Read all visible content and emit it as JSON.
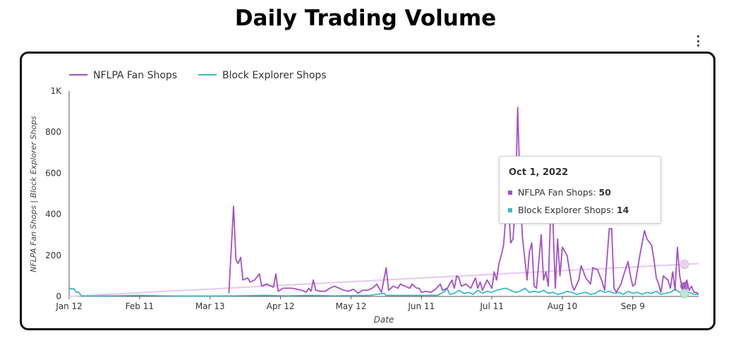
{
  "header": {
    "title": "Daily Trading Volume"
  },
  "menu": {
    "icon": "kebab-menu-icon"
  },
  "colors": {
    "nflpa": "#a34fc4",
    "block": "#3ab8cc",
    "trend": "#e6c8ee",
    "axis": "#555555"
  },
  "tooltip": {
    "date": "Oct 1, 2022",
    "rows": [
      {
        "label": "NFLPA Fan Shops: ",
        "value": "50"
      },
      {
        "label": "Block Explorer Shops: ",
        "value": "14"
      }
    ]
  },
  "chart_data": {
    "type": "line",
    "title": "Daily Trading Volume",
    "xlabel": "Date",
    "ylabel": "NFLPA Fan Shops | Block Explorer Shops",
    "ylim": [
      0,
      1000
    ],
    "yticks": [
      0,
      200,
      400,
      600,
      800,
      1000
    ],
    "ytick_labels": [
      "0",
      "200",
      "400",
      "600",
      "800",
      "1K"
    ],
    "xlim": [
      "2022-01-12",
      "2022-10-07"
    ],
    "xticks": [
      "2022-01-12",
      "2022-02-11",
      "2022-03-13",
      "2022-04-12",
      "2022-05-12",
      "2022-06-11",
      "2022-07-11",
      "2022-08-10",
      "2022-09-09"
    ],
    "xtick_labels": [
      "Jan 12",
      "Feb 11",
      "Mar 13",
      "Apr 12",
      "May 12",
      "Jun 11",
      "Jul 11",
      "Aug 10",
      "Sep 9"
    ],
    "legend": "top-left",
    "series": [
      {
        "name": "NFLPA Fan Shops",
        "points": [
          [
            "2022-03-21",
            15
          ],
          [
            "2022-03-23",
            440
          ],
          [
            "2022-03-24",
            180
          ],
          [
            "2022-03-25",
            160
          ],
          [
            "2022-03-26",
            190
          ],
          [
            "2022-03-27",
            80
          ],
          [
            "2022-03-29",
            90
          ],
          [
            "2022-03-30",
            70
          ],
          [
            "2022-04-01",
            80
          ],
          [
            "2022-04-03",
            110
          ],
          [
            "2022-04-04",
            50
          ],
          [
            "2022-04-06",
            60
          ],
          [
            "2022-04-08",
            50
          ],
          [
            "2022-04-09",
            45
          ],
          [
            "2022-04-10",
            110
          ],
          [
            "2022-04-11",
            25
          ],
          [
            "2022-04-13",
            40
          ],
          [
            "2022-04-17",
            40
          ],
          [
            "2022-04-21",
            30
          ],
          [
            "2022-04-23",
            20
          ],
          [
            "2022-04-24",
            40
          ],
          [
            "2022-04-25",
            25
          ],
          [
            "2022-04-26",
            80
          ],
          [
            "2022-04-27",
            30
          ],
          [
            "2022-04-29",
            25
          ],
          [
            "2022-05-01",
            25
          ],
          [
            "2022-05-03",
            40
          ],
          [
            "2022-05-05",
            50
          ],
          [
            "2022-05-07",
            40
          ],
          [
            "2022-05-09",
            30
          ],
          [
            "2022-05-11",
            25
          ],
          [
            "2022-05-13",
            35
          ],
          [
            "2022-05-15",
            15
          ],
          [
            "2022-05-17",
            30
          ],
          [
            "2022-05-19",
            30
          ],
          [
            "2022-05-21",
            40
          ],
          [
            "2022-05-23",
            60
          ],
          [
            "2022-05-25",
            20
          ],
          [
            "2022-05-26",
            80
          ],
          [
            "2022-05-27",
            140
          ],
          [
            "2022-05-28",
            30
          ],
          [
            "2022-05-30",
            50
          ],
          [
            "2022-06-01",
            40
          ],
          [
            "2022-06-02",
            60
          ],
          [
            "2022-06-04",
            50
          ],
          [
            "2022-06-06",
            40
          ],
          [
            "2022-06-07",
            60
          ],
          [
            "2022-06-09",
            40
          ],
          [
            "2022-06-10",
            40
          ],
          [
            "2022-06-11",
            20
          ],
          [
            "2022-06-13",
            25
          ],
          [
            "2022-06-15",
            20
          ],
          [
            "2022-06-17",
            35
          ],
          [
            "2022-06-19",
            60
          ],
          [
            "2022-06-20",
            30
          ],
          [
            "2022-06-22",
            40
          ],
          [
            "2022-06-24",
            80
          ],
          [
            "2022-06-25",
            40
          ],
          [
            "2022-06-26",
            100
          ],
          [
            "2022-06-27",
            90
          ],
          [
            "2022-06-28",
            50
          ],
          [
            "2022-06-30",
            60
          ],
          [
            "2022-07-02",
            40
          ],
          [
            "2022-07-04",
            90
          ],
          [
            "2022-07-05",
            40
          ],
          [
            "2022-07-06",
            70
          ],
          [
            "2022-07-07",
            30
          ],
          [
            "2022-07-09",
            80
          ],
          [
            "2022-07-10",
            60
          ],
          [
            "2022-07-11",
            40
          ],
          [
            "2022-07-12",
            120
          ],
          [
            "2022-07-13",
            80
          ],
          [
            "2022-07-14",
            160
          ],
          [
            "2022-07-15",
            200
          ],
          [
            "2022-07-16",
            250
          ],
          [
            "2022-07-17",
            400
          ],
          [
            "2022-07-18",
            470
          ],
          [
            "2022-07-19",
            260
          ],
          [
            "2022-07-20",
            280
          ],
          [
            "2022-07-21",
            450
          ],
          [
            "2022-07-22",
            920
          ],
          [
            "2022-07-23",
            530
          ],
          [
            "2022-07-24",
            290
          ],
          [
            "2022-07-26",
            80
          ],
          [
            "2022-07-27",
            220
          ],
          [
            "2022-07-28",
            260
          ],
          [
            "2022-07-29",
            50
          ],
          [
            "2022-07-30",
            40
          ],
          [
            "2022-08-01",
            300
          ],
          [
            "2022-08-02",
            80
          ],
          [
            "2022-08-03",
            120
          ],
          [
            "2022-08-04",
            50
          ],
          [
            "2022-08-05",
            400
          ],
          [
            "2022-08-06",
            370
          ],
          [
            "2022-08-07",
            40
          ],
          [
            "2022-08-08",
            280
          ],
          [
            "2022-08-09",
            100
          ],
          [
            "2022-08-10",
            240
          ],
          [
            "2022-08-12",
            200
          ],
          [
            "2022-08-14",
            60
          ],
          [
            "2022-08-15",
            30
          ],
          [
            "2022-08-17",
            80
          ],
          [
            "2022-08-18",
            150
          ],
          [
            "2022-08-20",
            90
          ],
          [
            "2022-08-22",
            60
          ],
          [
            "2022-08-23",
            140
          ],
          [
            "2022-08-25",
            130
          ],
          [
            "2022-08-27",
            70
          ],
          [
            "2022-08-28",
            30
          ],
          [
            "2022-08-30",
            330
          ],
          [
            "2022-08-31",
            330
          ],
          [
            "2022-09-01",
            40
          ],
          [
            "2022-09-02",
            20
          ],
          [
            "2022-09-04",
            60
          ],
          [
            "2022-09-05",
            100
          ],
          [
            "2022-09-07",
            170
          ],
          [
            "2022-09-08",
            100
          ],
          [
            "2022-09-09",
            50
          ],
          [
            "2022-09-10",
            60
          ],
          [
            "2022-09-12",
            200
          ],
          [
            "2022-09-14",
            320
          ],
          [
            "2022-09-15",
            280
          ],
          [
            "2022-09-17",
            250
          ],
          [
            "2022-09-18",
            180
          ],
          [
            "2022-09-19",
            90
          ],
          [
            "2022-09-20",
            60
          ],
          [
            "2022-09-21",
            20
          ],
          [
            "2022-09-22",
            100
          ],
          [
            "2022-09-24",
            80
          ],
          [
            "2022-09-25",
            40
          ],
          [
            "2022-09-26",
            120
          ],
          [
            "2022-09-27",
            30
          ],
          [
            "2022-09-28",
            240
          ],
          [
            "2022-09-29",
            100
          ],
          [
            "2022-09-30",
            40
          ],
          [
            "2022-10-01",
            50
          ],
          [
            "2022-10-02",
            80
          ],
          [
            "2022-10-03",
            30
          ],
          [
            "2022-10-04",
            50
          ],
          [
            "2022-10-05",
            20
          ],
          [
            "2022-10-06",
            20
          ],
          [
            "2022-10-07",
            10
          ]
        ]
      },
      {
        "name": "Block Explorer Shops",
        "points": [
          [
            "2022-01-12",
            42
          ],
          [
            "2022-01-13",
            35
          ],
          [
            "2022-01-14",
            38
          ],
          [
            "2022-01-15",
            20
          ],
          [
            "2022-01-16",
            22
          ],
          [
            "2022-01-17",
            5
          ],
          [
            "2022-01-18",
            2
          ],
          [
            "2022-01-22",
            2
          ],
          [
            "2022-02-01",
            3
          ],
          [
            "2022-02-11",
            5
          ],
          [
            "2022-02-20",
            3
          ],
          [
            "2022-03-01",
            2
          ],
          [
            "2022-03-13",
            2
          ],
          [
            "2022-03-25",
            3
          ],
          [
            "2022-04-05",
            5
          ],
          [
            "2022-04-15",
            3
          ],
          [
            "2022-04-25",
            5
          ],
          [
            "2022-05-05",
            3
          ],
          [
            "2022-05-20",
            5
          ],
          [
            "2022-05-26",
            15
          ],
          [
            "2022-05-27",
            5
          ],
          [
            "2022-06-05",
            5
          ],
          [
            "2022-06-11",
            5
          ],
          [
            "2022-06-18",
            6
          ],
          [
            "2022-06-21",
            25
          ],
          [
            "2022-06-22",
            40
          ],
          [
            "2022-06-23",
            10
          ],
          [
            "2022-06-25",
            15
          ],
          [
            "2022-06-27",
            30
          ],
          [
            "2022-06-29",
            15
          ],
          [
            "2022-07-01",
            20
          ],
          [
            "2022-07-03",
            10
          ],
          [
            "2022-07-05",
            30
          ],
          [
            "2022-07-07",
            15
          ],
          [
            "2022-07-09",
            25
          ],
          [
            "2022-07-11",
            20
          ],
          [
            "2022-07-13",
            30
          ],
          [
            "2022-07-15",
            35
          ],
          [
            "2022-07-17",
            40
          ],
          [
            "2022-07-19",
            30
          ],
          [
            "2022-07-21",
            20
          ],
          [
            "2022-07-23",
            25
          ],
          [
            "2022-07-25",
            40
          ],
          [
            "2022-07-27",
            20
          ],
          [
            "2022-07-29",
            25
          ],
          [
            "2022-07-31",
            20
          ],
          [
            "2022-08-02",
            30
          ],
          [
            "2022-08-04",
            15
          ],
          [
            "2022-08-06",
            20
          ],
          [
            "2022-08-08",
            10
          ],
          [
            "2022-08-10",
            15
          ],
          [
            "2022-08-12",
            25
          ],
          [
            "2022-08-14",
            20
          ],
          [
            "2022-08-16",
            10
          ],
          [
            "2022-08-18",
            15
          ],
          [
            "2022-08-20",
            20
          ],
          [
            "2022-08-22",
            10
          ],
          [
            "2022-08-24",
            15
          ],
          [
            "2022-08-26",
            30
          ],
          [
            "2022-08-28",
            20
          ],
          [
            "2022-08-30",
            25
          ],
          [
            "2022-09-01",
            15
          ],
          [
            "2022-09-03",
            20
          ],
          [
            "2022-09-05",
            10
          ],
          [
            "2022-09-07",
            25
          ],
          [
            "2022-09-09",
            15
          ],
          [
            "2022-09-11",
            20
          ],
          [
            "2022-09-13",
            10
          ],
          [
            "2022-09-15",
            20
          ],
          [
            "2022-09-17",
            15
          ],
          [
            "2022-09-19",
            25
          ],
          [
            "2022-09-21",
            10
          ],
          [
            "2022-09-23",
            15
          ],
          [
            "2022-09-25",
            20
          ],
          [
            "2022-09-27",
            35
          ],
          [
            "2022-09-29",
            20
          ],
          [
            "2022-10-01",
            14
          ],
          [
            "2022-10-03",
            20
          ],
          [
            "2022-10-05",
            10
          ],
          [
            "2022-10-07",
            10
          ]
        ]
      }
    ],
    "trend": {
      "points": [
        [
          "2022-01-12",
          0
        ],
        [
          "2022-10-07",
          160
        ]
      ]
    },
    "highlight": {
      "date": "2022-10-01",
      "values": [
        50,
        14
      ]
    }
  }
}
